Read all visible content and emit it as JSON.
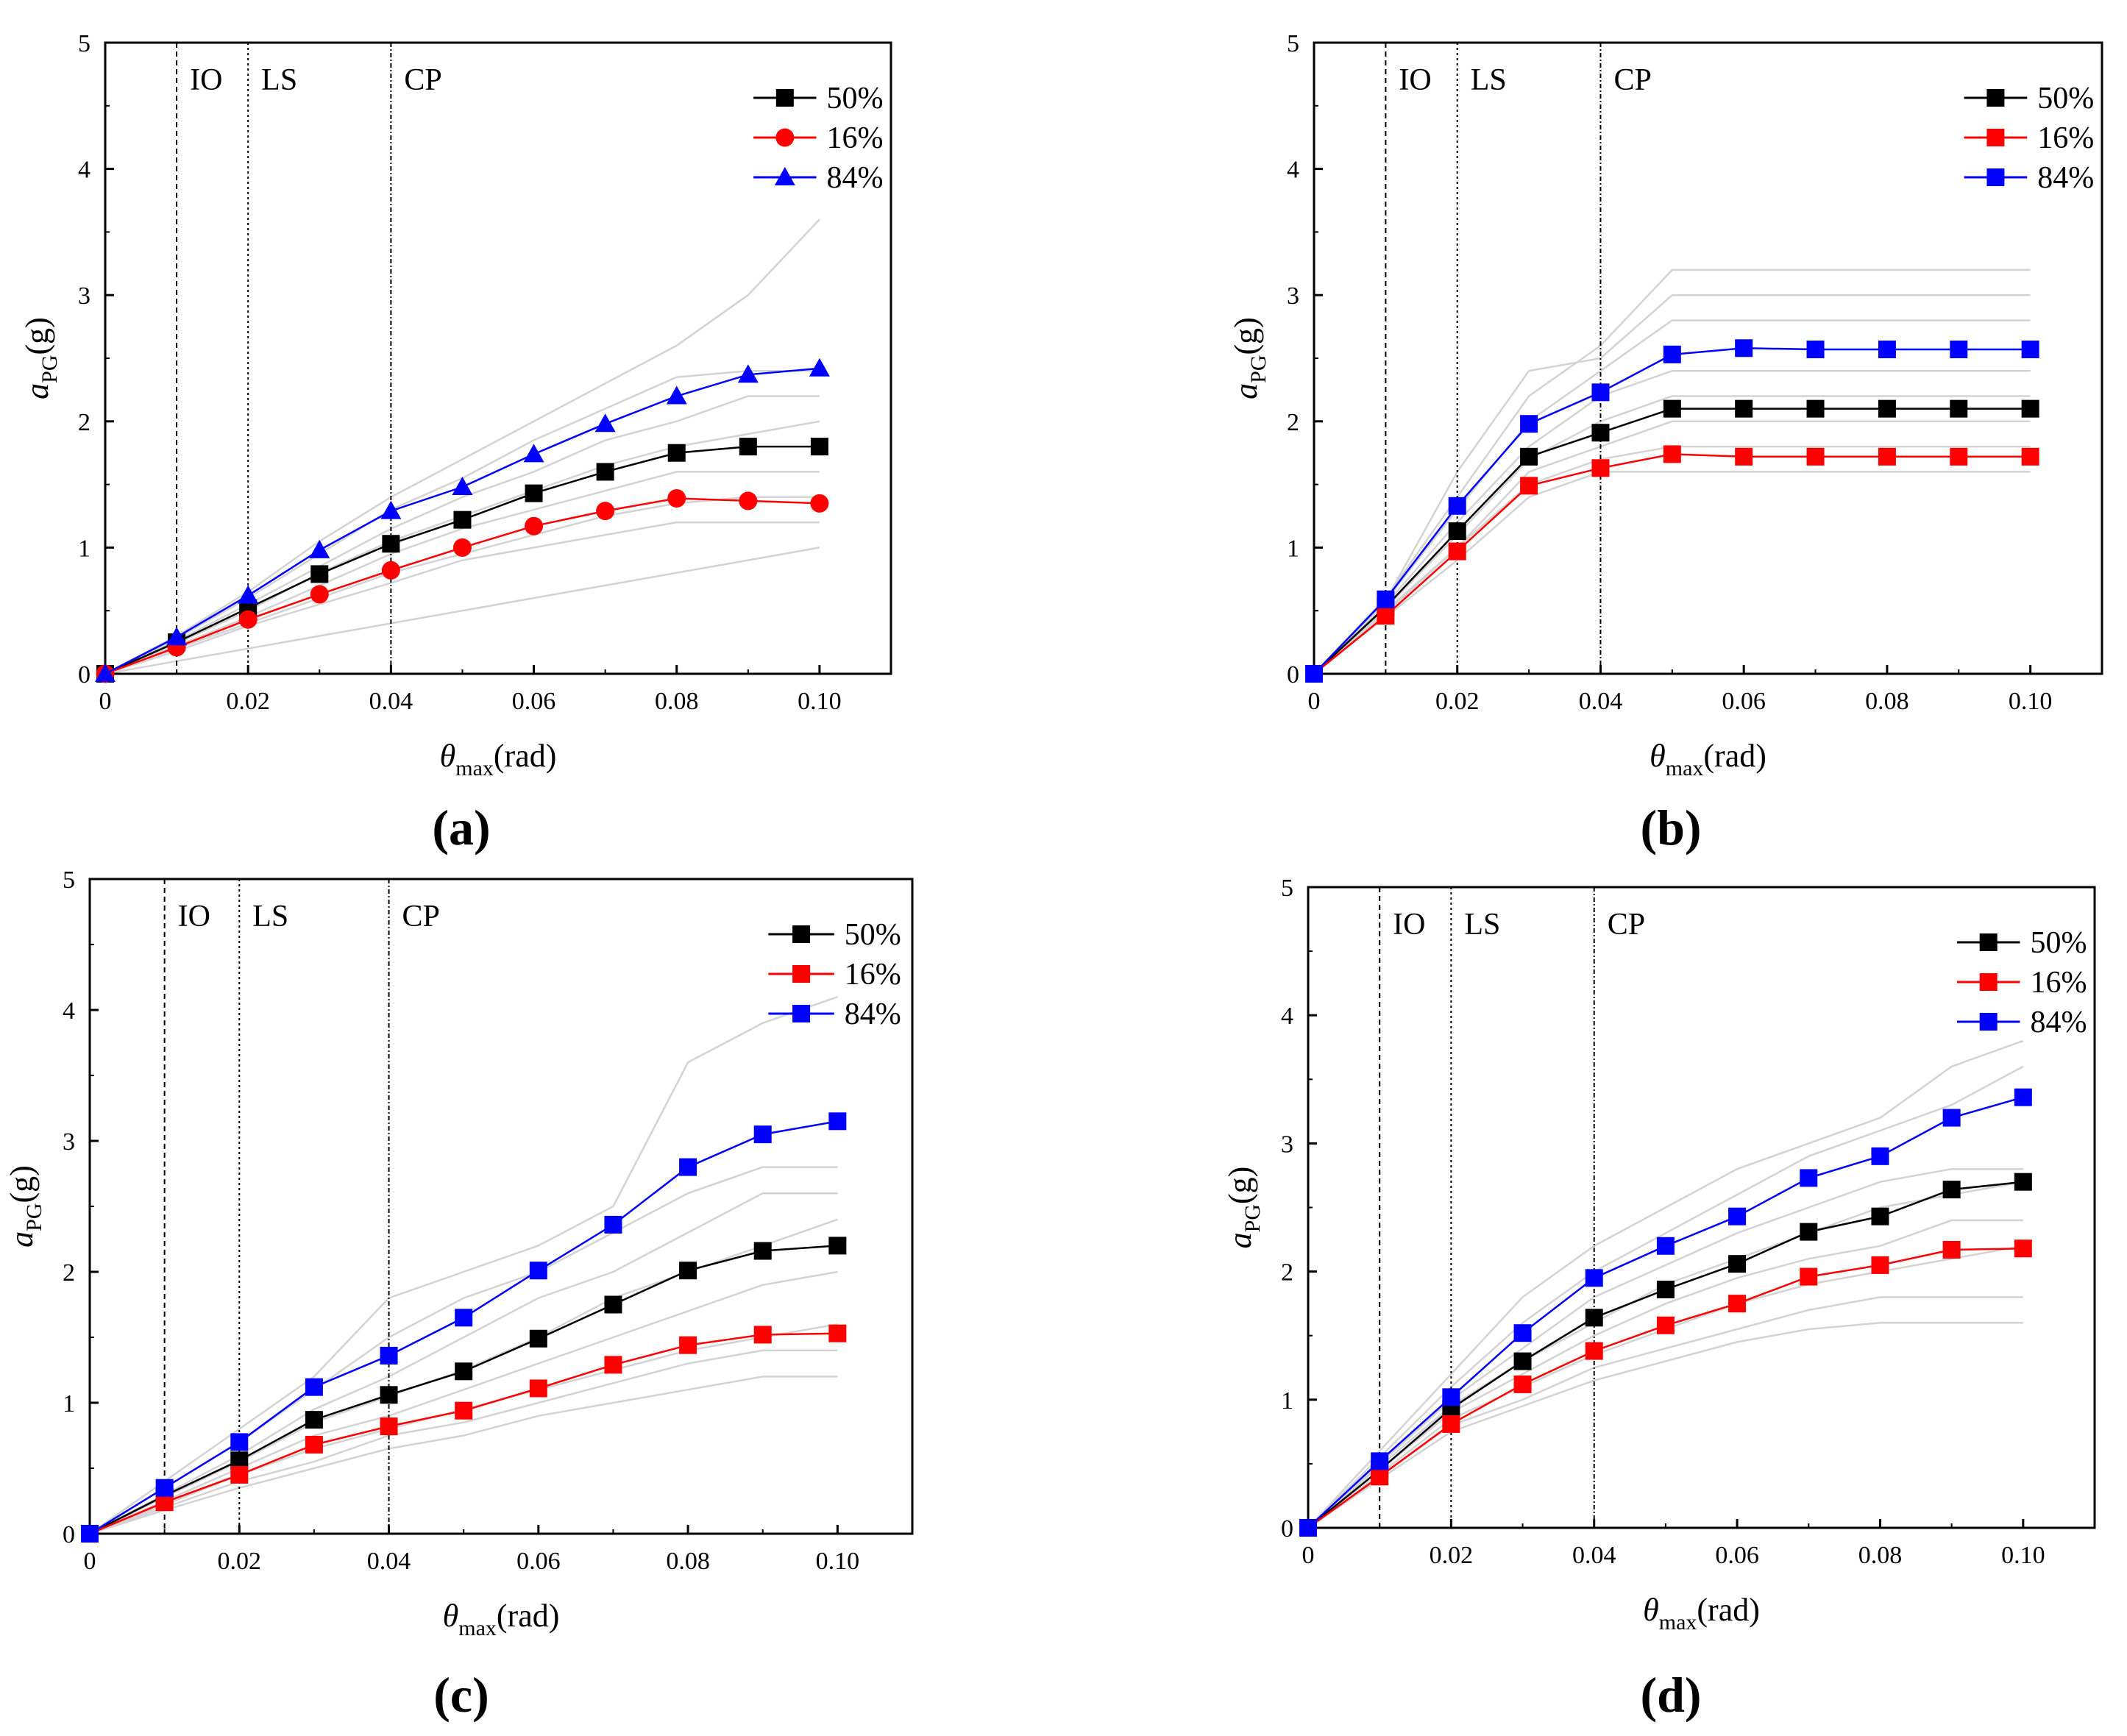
{
  "figure": {
    "xlabel_symbol": "θ",
    "xlabel_sub": "max",
    "xlabel_unit": "(rad)",
    "ylabel_symbol": "a",
    "ylabel_sub": "PG",
    "ylabel_unit": "(g)"
  },
  "colors": {
    "median": "#000000",
    "p16": "#ff0000",
    "p84": "#0000ff",
    "records": "#d3d3d3"
  },
  "chart_data": [
    {
      "type": "line",
      "panel": "(a)",
      "xlim": [
        0,
        0.11
      ],
      "ylim": [
        0,
        5
      ],
      "x_ticks": [
        "0",
        "0.02",
        "0.04",
        "0.06",
        "0.08",
        "0.10"
      ],
      "y_ticks": [
        "0",
        "1",
        "2",
        "3",
        "4",
        "5"
      ],
      "limit_states": [
        {
          "label": "IO",
          "x": 0.01
        },
        {
          "label": "LS",
          "x": 0.02
        },
        {
          "label": "CP",
          "x": 0.04
        }
      ],
      "x": [
        0,
        0.01,
        0.02,
        0.03,
        0.04,
        0.05,
        0.06,
        0.07,
        0.08,
        0.09,
        0.1
      ],
      "series": [
        {
          "name": "50%",
          "marker": "square",
          "values": [
            0,
            0.25,
            0.52,
            0.79,
            1.03,
            1.22,
            1.43,
            1.6,
            1.75,
            1.8,
            1.8
          ]
        },
        {
          "name": "16%",
          "marker": "circle",
          "values": [
            0,
            0.21,
            0.43,
            0.63,
            0.82,
            1.0,
            1.17,
            1.29,
            1.39,
            1.37,
            1.35
          ]
        },
        {
          "name": "84%",
          "marker": "triangle",
          "values": [
            0,
            0.29,
            0.62,
            0.98,
            1.29,
            1.48,
            1.74,
            1.98,
            2.2,
            2.37,
            2.42
          ]
        }
      ],
      "records": [
        [
          0,
          0.3,
          0.65,
          1.05,
          1.4,
          1.7,
          2.0,
          2.3,
          2.6,
          3.0,
          3.6
        ],
        [
          0,
          0.28,
          0.6,
          0.95,
          1.3,
          1.55,
          1.85,
          2.1,
          2.35,
          2.4,
          2.4
        ],
        [
          0,
          0.26,
          0.55,
          0.85,
          1.15,
          1.4,
          1.6,
          1.85,
          2.0,
          2.2,
          2.2
        ],
        [
          0,
          0.24,
          0.5,
          0.8,
          1.05,
          1.25,
          1.45,
          1.65,
          1.8,
          1.9,
          2.0
        ],
        [
          0,
          0.22,
          0.45,
          0.7,
          0.95,
          1.15,
          1.3,
          1.45,
          1.6,
          1.6,
          1.6
        ],
        [
          0,
          0.2,
          0.4,
          0.6,
          0.8,
          0.95,
          1.1,
          1.25,
          1.35,
          1.4,
          1.4
        ],
        [
          0,
          0.18,
          0.38,
          0.55,
          0.72,
          0.9,
          1.0,
          1.1,
          1.2,
          1.2,
          1.2
        ],
        [
          0,
          0.1,
          0.2,
          0.3,
          0.4,
          0.5,
          0.6,
          0.7,
          0.8,
          0.9,
          1.0
        ]
      ]
    },
    {
      "type": "line",
      "panel": "(b)",
      "xlim": [
        0,
        0.11
      ],
      "ylim": [
        0,
        5
      ],
      "x_ticks": [
        "0",
        "0.02",
        "0.04",
        "0.06",
        "0.08",
        "0.10"
      ],
      "y_ticks": [
        "0",
        "1",
        "2",
        "3",
        "4",
        "5"
      ],
      "limit_states": [
        {
          "label": "IO",
          "x": 0.01
        },
        {
          "label": "LS",
          "x": 0.02
        },
        {
          "label": "CP",
          "x": 0.04
        }
      ],
      "x": [
        0,
        0.01,
        0.02,
        0.03,
        0.04,
        0.05,
        0.06,
        0.07,
        0.08,
        0.09,
        0.1
      ],
      "series": [
        {
          "name": "50%",
          "marker": "square",
          "values": [
            0,
            0.53,
            1.13,
            1.72,
            1.91,
            2.1,
            2.1,
            2.1,
            2.1,
            2.1,
            2.1
          ]
        },
        {
          "name": "16%",
          "marker": "square",
          "values": [
            0,
            0.46,
            0.97,
            1.49,
            1.63,
            1.74,
            1.72,
            1.72,
            1.72,
            1.72,
            1.72
          ]
        },
        {
          "name": "84%",
          "marker": "square",
          "values": [
            0,
            0.59,
            1.33,
            1.98,
            2.23,
            2.53,
            2.58,
            2.57,
            2.57,
            2.57,
            2.57
          ]
        }
      ],
      "records": [
        [
          0,
          0.6,
          1.4,
          2.2,
          2.6,
          3.2,
          3.2,
          3.2,
          3.2,
          3.2,
          3.2
        ],
        [
          0,
          0.58,
          1.3,
          2.0,
          2.4,
          2.8,
          2.8,
          2.8,
          2.8,
          2.8,
          2.8
        ],
        [
          0,
          0.55,
          1.2,
          1.8,
          2.2,
          2.4,
          2.4,
          2.4,
          2.4,
          2.4,
          2.4
        ],
        [
          0,
          0.52,
          1.1,
          1.7,
          2.0,
          2.2,
          2.2,
          2.2,
          2.2,
          2.2,
          2.2
        ],
        [
          0,
          0.5,
          1.0,
          1.6,
          1.8,
          2.0,
          2.0,
          2.0,
          2.0,
          2.0,
          2.0
        ],
        [
          0,
          0.48,
          1.0,
          1.5,
          1.7,
          1.8,
          1.8,
          1.8,
          1.8,
          1.8,
          1.8
        ],
        [
          0,
          0.45,
          0.9,
          1.4,
          1.6,
          1.6,
          1.6,
          1.6,
          1.6,
          1.6,
          1.6
        ],
        [
          0,
          0.58,
          1.6,
          2.4,
          2.5,
          3.0,
          3.0,
          3.0,
          3.0,
          3.0,
          3.0
        ]
      ]
    },
    {
      "type": "line",
      "panel": "(c)",
      "xlim": [
        0,
        0.11
      ],
      "ylim": [
        0,
        5
      ],
      "x_ticks": [
        "0",
        "0.02",
        "0.04",
        "0.06",
        "0.08",
        "0.10"
      ],
      "y_ticks": [
        "0",
        "1",
        "2",
        "3",
        "4",
        "5"
      ],
      "limit_states": [
        {
          "label": "IO",
          "x": 0.01
        },
        {
          "label": "LS",
          "x": 0.02
        },
        {
          "label": "CP",
          "x": 0.04
        }
      ],
      "x": [
        0,
        0.01,
        0.02,
        0.03,
        0.04,
        0.05,
        0.06,
        0.07,
        0.08,
        0.09,
        0.1
      ],
      "series": [
        {
          "name": "50%",
          "marker": "square",
          "values": [
            0,
            0.29,
            0.56,
            0.87,
            1.06,
            1.24,
            1.49,
            1.75,
            2.01,
            2.16,
            2.2
          ]
        },
        {
          "name": "16%",
          "marker": "square",
          "values": [
            0,
            0.24,
            0.45,
            0.68,
            0.82,
            0.94,
            1.11,
            1.29,
            1.44,
            1.52,
            1.53
          ]
        },
        {
          "name": "84%",
          "marker": "square",
          "values": [
            0,
            0.35,
            0.7,
            1.12,
            1.36,
            1.65,
            2.01,
            2.36,
            2.8,
            3.05,
            3.15
          ]
        }
      ],
      "records": [
        [
          0,
          0.4,
          0.8,
          1.2,
          1.8,
          2.0,
          2.2,
          2.5,
          3.6,
          3.9,
          4.1
        ],
        [
          0,
          0.35,
          0.7,
          1.1,
          1.5,
          1.8,
          2.0,
          2.3,
          2.6,
          2.8,
          2.8
        ],
        [
          0,
          0.3,
          0.6,
          0.95,
          1.2,
          1.5,
          1.8,
          2.0,
          2.3,
          2.6,
          2.6
        ],
        [
          0,
          0.28,
          0.55,
          0.85,
          1.05,
          1.25,
          1.5,
          1.8,
          2.0,
          2.2,
          2.4
        ],
        [
          0,
          0.25,
          0.5,
          0.75,
          0.9,
          1.1,
          1.3,
          1.5,
          1.7,
          1.9,
          2.0
        ],
        [
          0,
          0.22,
          0.45,
          0.65,
          0.8,
          0.95,
          1.1,
          1.25,
          1.4,
          1.5,
          1.6
        ],
        [
          0,
          0.2,
          0.4,
          0.55,
          0.75,
          0.85,
          1.0,
          1.15,
          1.3,
          1.4,
          1.4
        ],
        [
          0,
          0.18,
          0.35,
          0.5,
          0.65,
          0.75,
          0.9,
          1.0,
          1.1,
          1.2,
          1.2
        ]
      ]
    },
    {
      "type": "line",
      "panel": "(d)",
      "xlim": [
        0,
        0.11
      ],
      "ylim": [
        0,
        5
      ],
      "x_ticks": [
        "0",
        "0.02",
        "0.04",
        "0.06",
        "0.08",
        "0.10"
      ],
      "y_ticks": [
        "0",
        "1",
        "2",
        "3",
        "4",
        "5"
      ],
      "limit_states": [
        {
          "label": "IO",
          "x": 0.01
        },
        {
          "label": "LS",
          "x": 0.02
        },
        {
          "label": "CP",
          "x": 0.04
        }
      ],
      "x": [
        0,
        0.01,
        0.02,
        0.03,
        0.04,
        0.05,
        0.06,
        0.07,
        0.08,
        0.09,
        0.1
      ],
      "series": [
        {
          "name": "50%",
          "marker": "square",
          "values": [
            0,
            0.45,
            0.93,
            1.3,
            1.64,
            1.86,
            2.06,
            2.31,
            2.43,
            2.64,
            2.7
          ]
        },
        {
          "name": "16%",
          "marker": "square",
          "values": [
            0,
            0.4,
            0.81,
            1.12,
            1.38,
            1.58,
            1.75,
            1.96,
            2.05,
            2.17,
            2.18
          ]
        },
        {
          "name": "84%",
          "marker": "square",
          "values": [
            0,
            0.52,
            1.02,
            1.52,
            1.95,
            2.2,
            2.43,
            2.73,
            2.9,
            3.2,
            3.36
          ]
        }
      ],
      "records": [
        [
          0,
          0.6,
          1.2,
          1.8,
          2.2,
          2.5,
          2.8,
          3.0,
          3.2,
          3.6,
          3.8
        ],
        [
          0,
          0.55,
          1.1,
          1.6,
          2.0,
          2.3,
          2.6,
          2.9,
          3.1,
          3.3,
          3.6
        ],
        [
          0,
          0.5,
          1.0,
          1.4,
          1.8,
          2.05,
          2.3,
          2.5,
          2.7,
          2.8,
          2.8
        ],
        [
          0,
          0.48,
          0.95,
          1.3,
          1.6,
          1.9,
          2.1,
          2.3,
          2.5,
          2.6,
          2.7
        ],
        [
          0,
          0.45,
          0.9,
          1.2,
          1.5,
          1.75,
          1.95,
          2.1,
          2.2,
          2.4,
          2.4
        ],
        [
          0,
          0.42,
          0.85,
          1.1,
          1.35,
          1.55,
          1.75,
          1.9,
          2.0,
          2.1,
          2.2
        ],
        [
          0,
          0.4,
          0.8,
          1.0,
          1.25,
          1.4,
          1.55,
          1.7,
          1.8,
          1.8,
          1.8
        ],
        [
          0,
          0.38,
          0.75,
          0.95,
          1.15,
          1.3,
          1.45,
          1.55,
          1.6,
          1.6,
          1.6
        ]
      ]
    }
  ]
}
